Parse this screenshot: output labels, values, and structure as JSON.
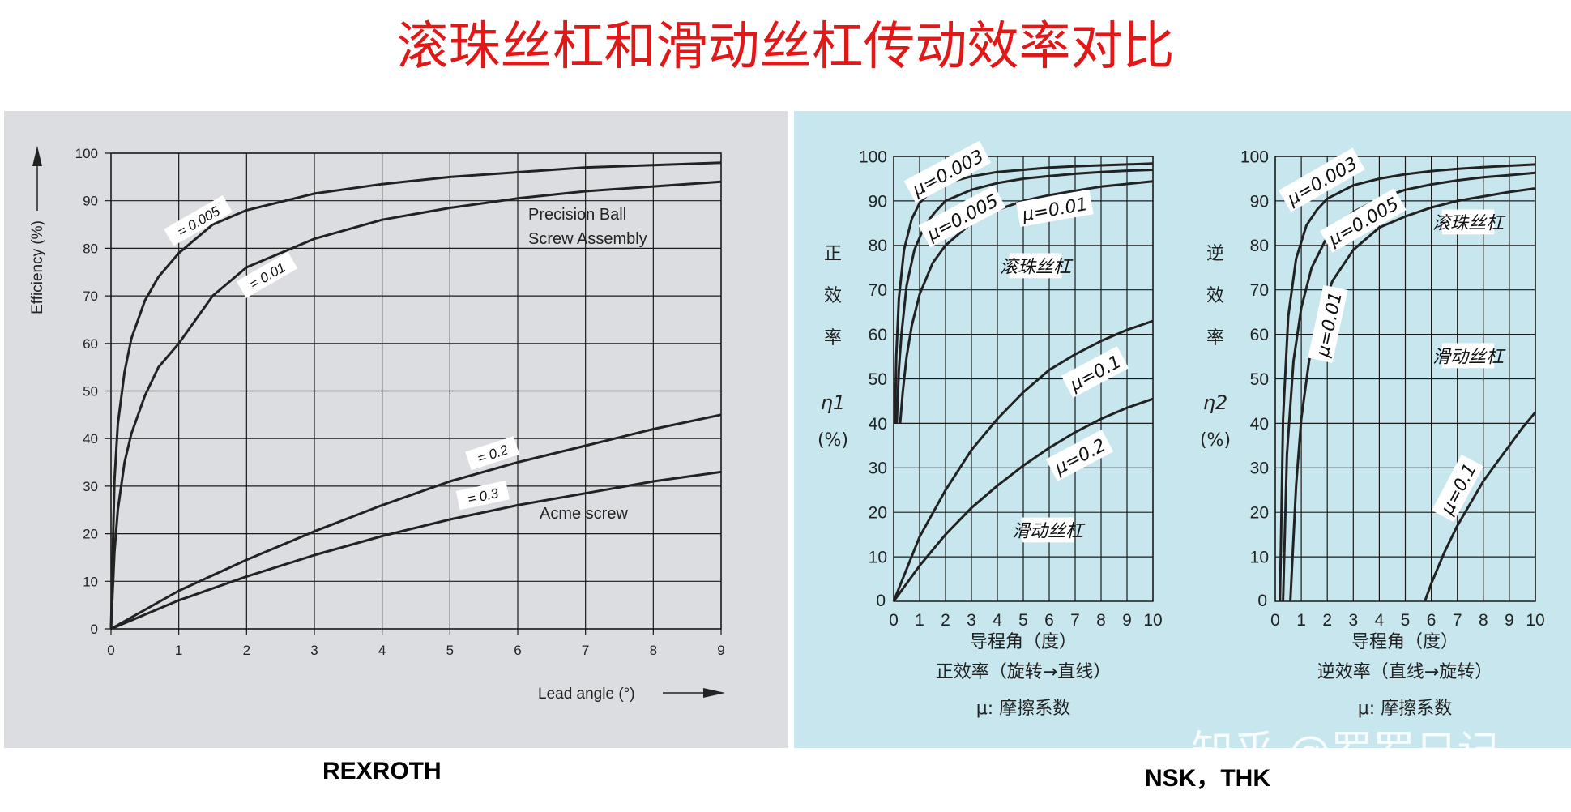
{
  "title": "滚珠丝杠和滑动丝杠传动效率对比",
  "captions": {
    "left": "REXROTH",
    "right": "NSK，THK"
  },
  "watermark": "知乎 @罗罗日记",
  "colors": {
    "title": "#e01818",
    "left_bg": "#dcdde0",
    "right_bg": "#c7e6ee",
    "line": "#222222",
    "grid": "#1a1a1a"
  },
  "chart_data": [
    {
      "type": "line",
      "ylabel": "Efficiency (%)",
      "xlabel": "Lead angle (°)",
      "xlim": [
        0,
        9
      ],
      "ylim": [
        0,
        100
      ],
      "x_ticks": [
        "0",
        "1",
        "2",
        "3",
        "4",
        "5",
        "6",
        "7",
        "8",
        "9"
      ],
      "y_ticks": [
        "0",
        "10",
        "20",
        "30",
        "40",
        "50",
        "60",
        "70",
        "80",
        "90",
        "100"
      ],
      "grid": true,
      "annotations": [
        "Precision Ball",
        "Screw Assembly",
        "Acme screw"
      ],
      "series": [
        {
          "name": "= 0.005",
          "x": [
            0,
            0.05,
            0.1,
            0.2,
            0.3,
            0.5,
            0.7,
            1,
            1.5,
            2,
            3,
            4,
            5,
            6,
            7,
            8,
            9
          ],
          "y": [
            0,
            31,
            43,
            54,
            61,
            69,
            74,
            79,
            85,
            88,
            91.5,
            93.5,
            95,
            96,
            97,
            97.5,
            98
          ]
        },
        {
          "name": "= 0.01",
          "x": [
            0,
            0.05,
            0.1,
            0.2,
            0.3,
            0.5,
            0.7,
            1,
            1.5,
            2,
            3,
            4,
            5,
            6,
            7,
            8,
            9
          ],
          "y": [
            0,
            16,
            25,
            35,
            41,
            49,
            55,
            60,
            70,
            76,
            82,
            86,
            88.5,
            90.5,
            92,
            93,
            94
          ]
        },
        {
          "name": "= 0.2",
          "x": [
            0,
            1,
            2,
            3,
            4,
            5,
            6,
            7,
            8,
            9
          ],
          "y": [
            0,
            8,
            14.5,
            20.5,
            26,
            31,
            35,
            38.5,
            42,
            45
          ]
        },
        {
          "name": "= 0.3",
          "x": [
            0,
            1,
            2,
            3,
            4,
            5,
            6,
            7,
            8,
            9
          ],
          "y": [
            0,
            6,
            11,
            15.5,
            19.5,
            23,
            26,
            28.5,
            31,
            33
          ]
        }
      ]
    },
    {
      "type": "line",
      "ylabel": [
        "正",
        "效",
        "率",
        "η1",
        "(%)"
      ],
      "xlabel": "导程角（度）",
      "subtitle": "正效率（旋转→直线）",
      "note": "μ: 摩擦系数",
      "xlim": [
        0,
        10
      ],
      "ylim": [
        0,
        100
      ],
      "x_ticks": [
        "0",
        "1",
        "2",
        "3",
        "4",
        "5",
        "6",
        "7",
        "8",
        "9",
        "10"
      ],
      "y_ticks": [
        "10",
        "20",
        "30",
        "40",
        "50",
        "60",
        "70",
        "80",
        "90",
        "100"
      ],
      "grid": true,
      "annotations": [
        "滚珠丝杠",
        "滑动丝杠"
      ],
      "series": [
        {
          "name": "μ=0.003",
          "x": [
            0.05,
            0.1,
            0.2,
            0.4,
            0.7,
            1,
            1.5,
            2,
            3,
            4,
            5,
            6,
            7,
            8,
            9,
            10
          ],
          "y": [
            40,
            55,
            68,
            79,
            86,
            89.5,
            92.5,
            94,
            95.5,
            96.5,
            97,
            97.5,
            97.8,
            98,
            98.2,
            98.4
          ]
        },
        {
          "name": "μ=0.005",
          "x": [
            0.12,
            0.2,
            0.3,
            0.5,
            0.8,
            1.2,
            1.6,
            2,
            3,
            4,
            5,
            6,
            7,
            8,
            9,
            10
          ],
          "y": [
            40,
            52,
            60,
            71,
            79,
            84.5,
            87.5,
            90,
            92.5,
            94,
            95,
            95.6,
            96.1,
            96.5,
            96.8,
            97
          ]
        },
        {
          "name": "μ=0.01",
          "x": [
            0.25,
            0.35,
            0.5,
            0.7,
            1,
            1.5,
            2,
            3,
            4,
            5,
            6,
            7,
            8,
            9,
            10
          ],
          "y": [
            40,
            47,
            55,
            62,
            69,
            76,
            80,
            85,
            88,
            90,
            91.3,
            92.3,
            93.2,
            93.8,
            94.4
          ]
        },
        {
          "name": "μ=0.1",
          "x": [
            0,
            1,
            2,
            3,
            4,
            5,
            6,
            7,
            8,
            9,
            10
          ],
          "y": [
            0,
            14.5,
            25,
            34,
            41,
            47,
            52,
            55.5,
            58.5,
            61,
            63
          ]
        },
        {
          "name": "μ=0.2",
          "x": [
            0,
            1,
            2,
            3,
            4,
            5,
            6,
            7,
            8,
            9,
            10
          ],
          "y": [
            0,
            8,
            15,
            21,
            26,
            30.5,
            34.5,
            38,
            41,
            43.5,
            45.5
          ]
        }
      ]
    },
    {
      "type": "line",
      "ylabel": [
        "逆",
        "效",
        "率",
        "η2",
        "(%)"
      ],
      "xlabel": "导程角（度）",
      "subtitle": "逆效率（直线→旋转）",
      "note": "μ: 摩擦系数",
      "xlim": [
        0,
        10
      ],
      "ylim": [
        0,
        100
      ],
      "x_ticks": [
        "0",
        "1",
        "2",
        "3",
        "4",
        "5",
        "6",
        "7",
        "8",
        "9",
        "10"
      ],
      "y_ticks": [
        "10",
        "20",
        "30",
        "40",
        "50",
        "60",
        "70",
        "80",
        "90",
        "100"
      ],
      "grid": true,
      "annotations": [
        "滚珠丝杠",
        "滑动丝杠"
      ],
      "series": [
        {
          "name": "μ=0.003",
          "x": [
            0.18,
            0.3,
            0.5,
            0.8,
            1.2,
            1.6,
            2,
            3,
            4,
            5,
            6,
            7,
            8,
            9,
            10
          ],
          "y": [
            0,
            41,
            64,
            77,
            84.5,
            88,
            90.5,
            93.5,
            95,
            96,
            96.7,
            97.2,
            97.6,
            97.9,
            98.2
          ]
        },
        {
          "name": "μ=0.005",
          "x": [
            0.3,
            0.45,
            0.7,
            1,
            1.4,
            2,
            3,
            4,
            5,
            6,
            7,
            8,
            9,
            10
          ],
          "y": [
            0,
            33,
            54,
            66,
            75,
            82,
            87.5,
            90.5,
            92.5,
            93.7,
            94.6,
            95.3,
            95.8,
            96.3
          ]
        },
        {
          "name": "μ=0.01",
          "x": [
            0.58,
            0.8,
            1,
            1.3,
            1.7,
            2.2,
            3,
            4,
            5,
            6,
            7,
            8,
            9,
            10
          ],
          "y": [
            0,
            26,
            41,
            54,
            64,
            72,
            79,
            84,
            86.5,
            88.5,
            90,
            91,
            92,
            92.8
          ]
        },
        {
          "name": "μ=0.1",
          "x": [
            5.75,
            6,
            6.5,
            7,
            7.5,
            8,
            8.5,
            9,
            9.5,
            10
          ],
          "y": [
            0,
            4,
            11,
            17,
            22,
            27,
            31,
            35,
            39,
            42.5
          ]
        }
      ]
    }
  ]
}
